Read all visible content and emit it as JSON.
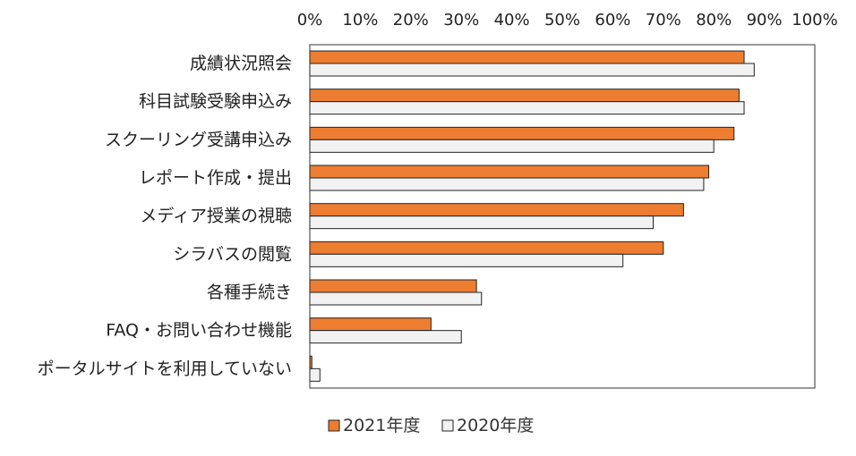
{
  "chart_data": {
    "type": "bar",
    "orientation": "horizontal",
    "categories": [
      "成績状況照会",
      "科目試験受験申込み",
      "スクーリング受講申込み",
      "レポート作成・提出",
      "メディア授業の視聴",
      "シラバスの閲覧",
      "各種手続き",
      "FAQ・お問い合わせ機能",
      "ポータルサイトを利用していない"
    ],
    "series": [
      {
        "name": "2021年度",
        "color": "#ED7D31",
        "values": [
          86,
          85,
          84,
          79,
          74,
          70,
          33,
          24,
          0.4
        ]
      },
      {
        "name": "2020年度",
        "color": "#F2F2F2",
        "values": [
          88,
          86,
          80,
          78,
          68,
          62,
          34,
          30,
          2
        ]
      }
    ],
    "xlim": [
      0,
      100
    ],
    "x_ticks": [
      "0%",
      "10%",
      "20%",
      "30%",
      "40%",
      "50%",
      "60%",
      "70%",
      "80%",
      "90%",
      "100%"
    ],
    "x_axis_position": "top",
    "grid": false,
    "legend_position": "bottom",
    "title": "",
    "xlabel": "",
    "ylabel": ""
  }
}
